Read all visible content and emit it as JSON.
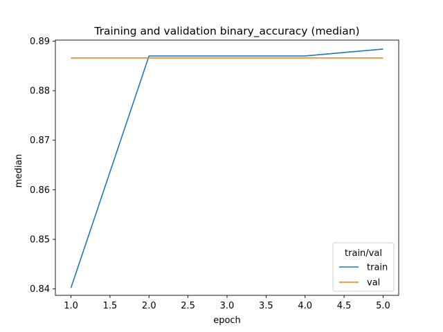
{
  "chart_data": {
    "type": "line",
    "title": "Training and validation binary_accuracy (median)",
    "xlabel": "epoch",
    "ylabel": "median",
    "xlim": [
      0.8,
      5.2
    ],
    "ylim": [
      0.8387,
      0.8902
    ],
    "x_ticks": [
      1.0,
      1.5,
      2.0,
      2.5,
      3.0,
      3.5,
      4.0,
      4.5,
      5.0
    ],
    "x_tick_labels": [
      "1.0",
      "1.5",
      "2.0",
      "2.5",
      "3.0",
      "3.5",
      "4.0",
      "4.5",
      "5.0"
    ],
    "y_ticks": [
      0.84,
      0.85,
      0.86,
      0.87,
      0.88,
      0.89
    ],
    "y_tick_labels": [
      "0.84",
      "0.85",
      "0.86",
      "0.87",
      "0.88",
      "0.89"
    ],
    "grid": false,
    "legend": {
      "title": "train/val",
      "placement": "lower-right"
    },
    "series": [
      {
        "name": "train",
        "color": "#1f77b4",
        "x": [
          1,
          2,
          3,
          4,
          5
        ],
        "values": [
          0.8402,
          0.887,
          0.887,
          0.887,
          0.8884
        ]
      },
      {
        "name": "val",
        "color": "#ff7f0e",
        "x": [
          1,
          2,
          3,
          4,
          5
        ],
        "values": [
          0.8866,
          0.8866,
          0.8866,
          0.8866,
          0.8866
        ]
      }
    ]
  }
}
